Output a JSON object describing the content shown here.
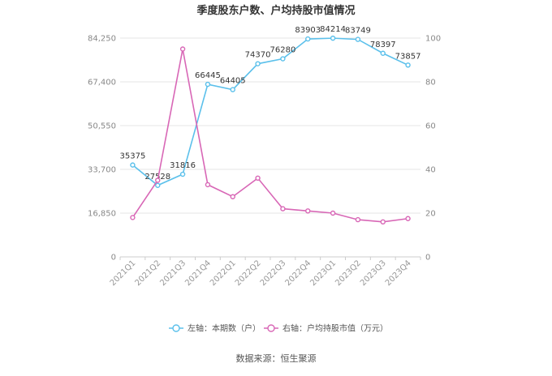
{
  "title": "季度股东户数、户均持股市值情况",
  "source": "数据来源：恒生聚源",
  "colors": {
    "left_series": "#5bc0eb",
    "right_series": "#d867b6",
    "grid": "#e6e6e6",
    "axis": "#cccccc"
  },
  "chart_data": {
    "type": "line",
    "title": "季度股东户数、户均持股市值情况",
    "categories": [
      "2021Q1",
      "2021Q2",
      "2021Q3",
      "2021Q4",
      "2022Q1",
      "2022Q2",
      "2022Q3",
      "2022Q4",
      "2023Q1",
      "2023Q2",
      "2023Q3",
      "2023Q4"
    ],
    "y_left": {
      "ylim": [
        0,
        84250
      ],
      "ticks": [
        0,
        16850,
        33700,
        50550,
        67400,
        84250
      ],
      "tick_labels": [
        "0",
        "16,850",
        "33,700",
        "50,550",
        "67,400",
        "84,250"
      ]
    },
    "y_right": {
      "ylim": [
        0,
        100
      ],
      "ticks": [
        0,
        20,
        40,
        60,
        80,
        100
      ],
      "tick_labels": [
        "0",
        "20",
        "40",
        "60",
        "80",
        "100"
      ]
    },
    "series": [
      {
        "name": "左轴：本期数（户）",
        "axis": "left",
        "color": "#5bc0eb",
        "values": [
          35375,
          27528,
          31816,
          66445,
          64405,
          74370,
          76280,
          83903,
          84214,
          83749,
          78397,
          73857
        ],
        "labels": [
          "35375",
          "27528",
          "31816",
          "66445",
          "64405",
          "74370",
          "76280",
          "83903",
          "84214",
          "83749",
          "78397",
          "73857"
        ]
      },
      {
        "name": "右轴：户均持股市值（万元）",
        "axis": "right",
        "color": "#d867b6",
        "values": [
          18,
          35,
          95,
          33,
          27.5,
          36,
          22,
          21,
          20,
          17,
          16,
          17.5
        ]
      }
    ],
    "grid": true,
    "legend": "bottom"
  }
}
